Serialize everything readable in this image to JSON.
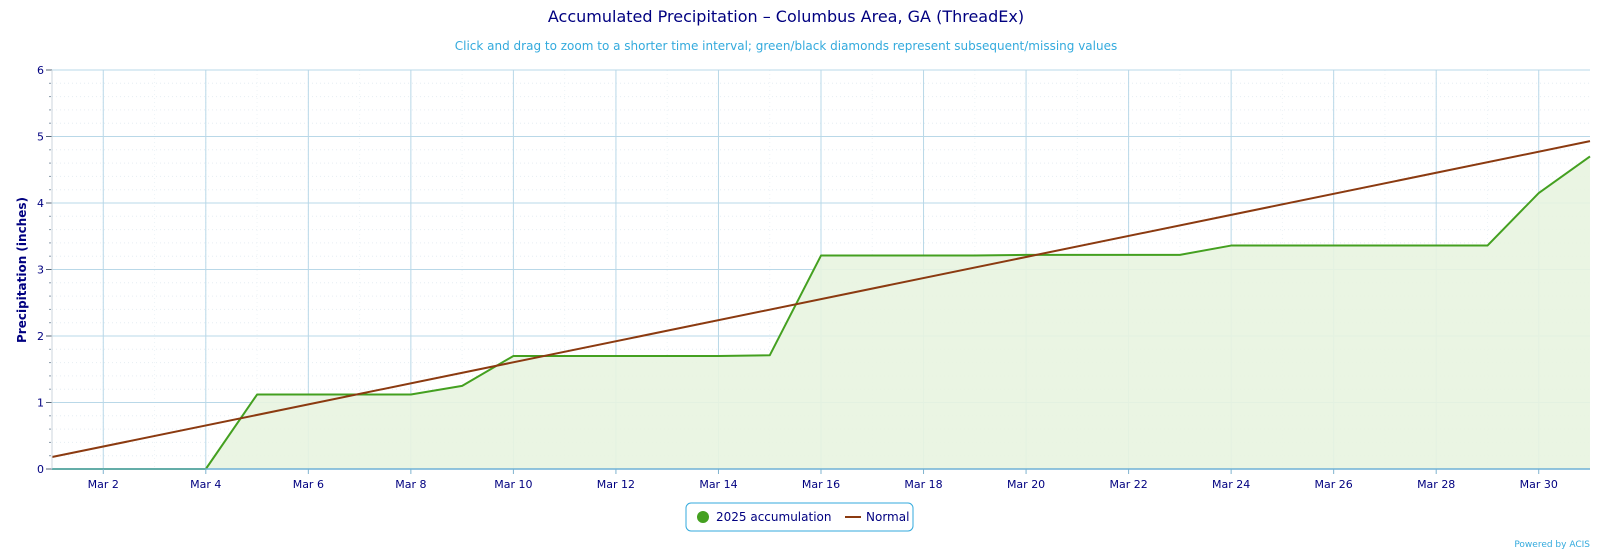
{
  "chart": {
    "title": "Accumulated Precipitation – Columbus Area, GA (ThreadEx)",
    "subtitle": "Click and drag to zoom to a shorter time interval; green/black diamonds represent subsequent/missing values",
    "ylabel": "Precipitation (inches)",
    "credit": "Powered by ACIS",
    "legend": {
      "accumulation_label": "2025 accumulation",
      "normal_label": "Normal"
    }
  },
  "colors": {
    "accumulation": "#44a020",
    "accumulation_fill": "#e8f4e0",
    "normal": "#8b3a10",
    "grid": "#b9d8e8",
    "axis": "#000080"
  },
  "chart_data": {
    "type": "area",
    "title": "Accumulated Precipitation – Columbus Area, GA (ThreadEx)",
    "ylabel": "Precipitation (inches)",
    "xlabel": "",
    "ylim": [
      0,
      6
    ],
    "xlim": [
      "2025-03-01",
      "2025-03-31"
    ],
    "y_ticks": [
      "0",
      "1",
      "2",
      "3",
      "4",
      "5",
      "6"
    ],
    "x_ticks": [
      {
        "date": "2025-03-02",
        "label": "Mar 2"
      },
      {
        "date": "2025-03-04",
        "label": "Mar 4"
      },
      {
        "date": "2025-03-06",
        "label": "Mar 6"
      },
      {
        "date": "2025-03-08",
        "label": "Mar 8"
      },
      {
        "date": "2025-03-10",
        "label": "Mar 10"
      },
      {
        "date": "2025-03-12",
        "label": "Mar 12"
      },
      {
        "date": "2025-03-14",
        "label": "Mar 14"
      },
      {
        "date": "2025-03-16",
        "label": "Mar 16"
      },
      {
        "date": "2025-03-18",
        "label": "Mar 18"
      },
      {
        "date": "2025-03-20",
        "label": "Mar 20"
      },
      {
        "date": "2025-03-22",
        "label": "Mar 22"
      },
      {
        "date": "2025-03-24",
        "label": "Mar 24"
      },
      {
        "date": "2025-03-26",
        "label": "Mar 26"
      },
      {
        "date": "2025-03-28",
        "label": "Mar 28"
      },
      {
        "date": "2025-03-30",
        "label": "Mar 30"
      }
    ],
    "grid": true,
    "legend": "bottom-center",
    "series": [
      {
        "name": "2025 accumulation",
        "type": "area",
        "x": [
          "2025-03-01",
          "2025-03-02",
          "2025-03-03",
          "2025-03-04",
          "2025-03-05",
          "2025-03-06",
          "2025-03-07",
          "2025-03-08",
          "2025-03-09",
          "2025-03-10",
          "2025-03-11",
          "2025-03-12",
          "2025-03-13",
          "2025-03-14",
          "2025-03-15",
          "2025-03-16",
          "2025-03-17",
          "2025-03-18",
          "2025-03-19",
          "2025-03-20",
          "2025-03-21",
          "2025-03-22",
          "2025-03-23",
          "2025-03-24",
          "2025-03-25",
          "2025-03-26",
          "2025-03-27",
          "2025-03-28",
          "2025-03-29",
          "2025-03-30",
          "2025-03-31"
        ],
        "values": [
          0,
          0,
          0,
          0,
          1.12,
          1.12,
          1.12,
          1.12,
          1.25,
          1.7,
          1.7,
          1.7,
          1.7,
          1.7,
          1.71,
          3.21,
          3.21,
          3.21,
          3.21,
          3.22,
          3.22,
          3.22,
          3.22,
          3.36,
          3.36,
          3.36,
          3.36,
          3.36,
          3.36,
          4.15,
          4.7
        ]
      },
      {
        "name": "Normal",
        "type": "line",
        "x": [
          "2025-03-01",
          "2025-03-31"
        ],
        "values": [
          0.18,
          4.93
        ]
      }
    ]
  }
}
